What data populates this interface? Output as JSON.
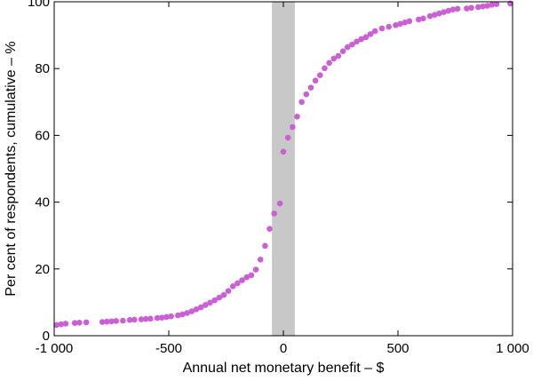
{
  "chart_data": {
    "type": "scatter",
    "xlabel": "Annual net monetary benefit – $",
    "ylabel": "Per cent of respondents, cumulative – %",
    "xlim": [
      -1000,
      1000
    ],
    "ylim": [
      0,
      100
    ],
    "x_ticks": [
      -1000,
      -500,
      0,
      500,
      1000
    ],
    "x_tick_labels": [
      "-1 000",
      "-500",
      "0",
      "500",
      "1 000"
    ],
    "y_ticks": [
      0,
      20,
      40,
      60,
      80,
      100
    ],
    "y_tick_labels": [
      "0",
      "20",
      "40",
      "60",
      "80",
      "100"
    ],
    "grid": false,
    "shaded_band": {
      "x_start": -50,
      "x_end": 50,
      "color": "#c8c8c8"
    },
    "marker_color": "#cc5fd6",
    "points": [
      [
        -990,
        3.2
      ],
      [
        -970,
        3.4
      ],
      [
        -950,
        3.6
      ],
      [
        -910,
        3.8
      ],
      [
        -890,
        3.9
      ],
      [
        -860,
        4.0
      ],
      [
        -790,
        4.1
      ],
      [
        -770,
        4.2
      ],
      [
        -750,
        4.3
      ],
      [
        -730,
        4.4
      ],
      [
        -700,
        4.5
      ],
      [
        -670,
        4.7
      ],
      [
        -650,
        4.8
      ],
      [
        -620,
        4.9
      ],
      [
        -600,
        5.0
      ],
      [
        -580,
        5.1
      ],
      [
        -550,
        5.3
      ],
      [
        -530,
        5.4
      ],
      [
        -510,
        5.6
      ],
      [
        -490,
        5.8
      ],
      [
        -460,
        6.1
      ],
      [
        -440,
        6.4
      ],
      [
        -420,
        6.8
      ],
      [
        -400,
        7.3
      ],
      [
        -380,
        7.9
      ],
      [
        -360,
        8.5
      ],
      [
        -340,
        9.2
      ],
      [
        -320,
        9.9
      ],
      [
        -300,
        10.6
      ],
      [
        -280,
        11.4
      ],
      [
        -260,
        12.2
      ],
      [
        -240,
        13.4
      ],
      [
        -220,
        14.8
      ],
      [
        -200,
        15.7
      ],
      [
        -180,
        16.6
      ],
      [
        -160,
        17.5
      ],
      [
        -140,
        18.1
      ],
      [
        -120,
        19.8
      ],
      [
        -100,
        22.8
      ],
      [
        -80,
        26.9
      ],
      [
        -60,
        32.0
      ],
      [
        -40,
        36.6
      ],
      [
        -15,
        39.6
      ],
      [
        0,
        55.1
      ],
      [
        20,
        59.3
      ],
      [
        40,
        62.5
      ],
      [
        60,
        65.6
      ],
      [
        80,
        70.0
      ],
      [
        100,
        72.3
      ],
      [
        120,
        74.3
      ],
      [
        140,
        76.4
      ],
      [
        160,
        78.0
      ],
      [
        180,
        80.1
      ],
      [
        200,
        81.7
      ],
      [
        220,
        83.0
      ],
      [
        240,
        83.8
      ],
      [
        260,
        85.2
      ],
      [
        280,
        86.4
      ],
      [
        300,
        87.2
      ],
      [
        320,
        88.1
      ],
      [
        340,
        88.8
      ],
      [
        360,
        89.4
      ],
      [
        380,
        90.3
      ],
      [
        400,
        91.2
      ],
      [
        430,
        92.0
      ],
      [
        460,
        92.5
      ],
      [
        490,
        93.0
      ],
      [
        510,
        93.4
      ],
      [
        530,
        93.8
      ],
      [
        550,
        94.2
      ],
      [
        590,
        94.7
      ],
      [
        610,
        95.0
      ],
      [
        640,
        95.7
      ],
      [
        660,
        96.1
      ],
      [
        680,
        96.5
      ],
      [
        700,
        96.9
      ],
      [
        720,
        97.3
      ],
      [
        740,
        97.7
      ],
      [
        760,
        97.9
      ],
      [
        800,
        98.0
      ],
      [
        820,
        98.2
      ],
      [
        850,
        98.4
      ],
      [
        870,
        98.6
      ],
      [
        890,
        98.8
      ],
      [
        910,
        99.1
      ],
      [
        930,
        99.3
      ],
      [
        990,
        99.5
      ]
    ]
  }
}
